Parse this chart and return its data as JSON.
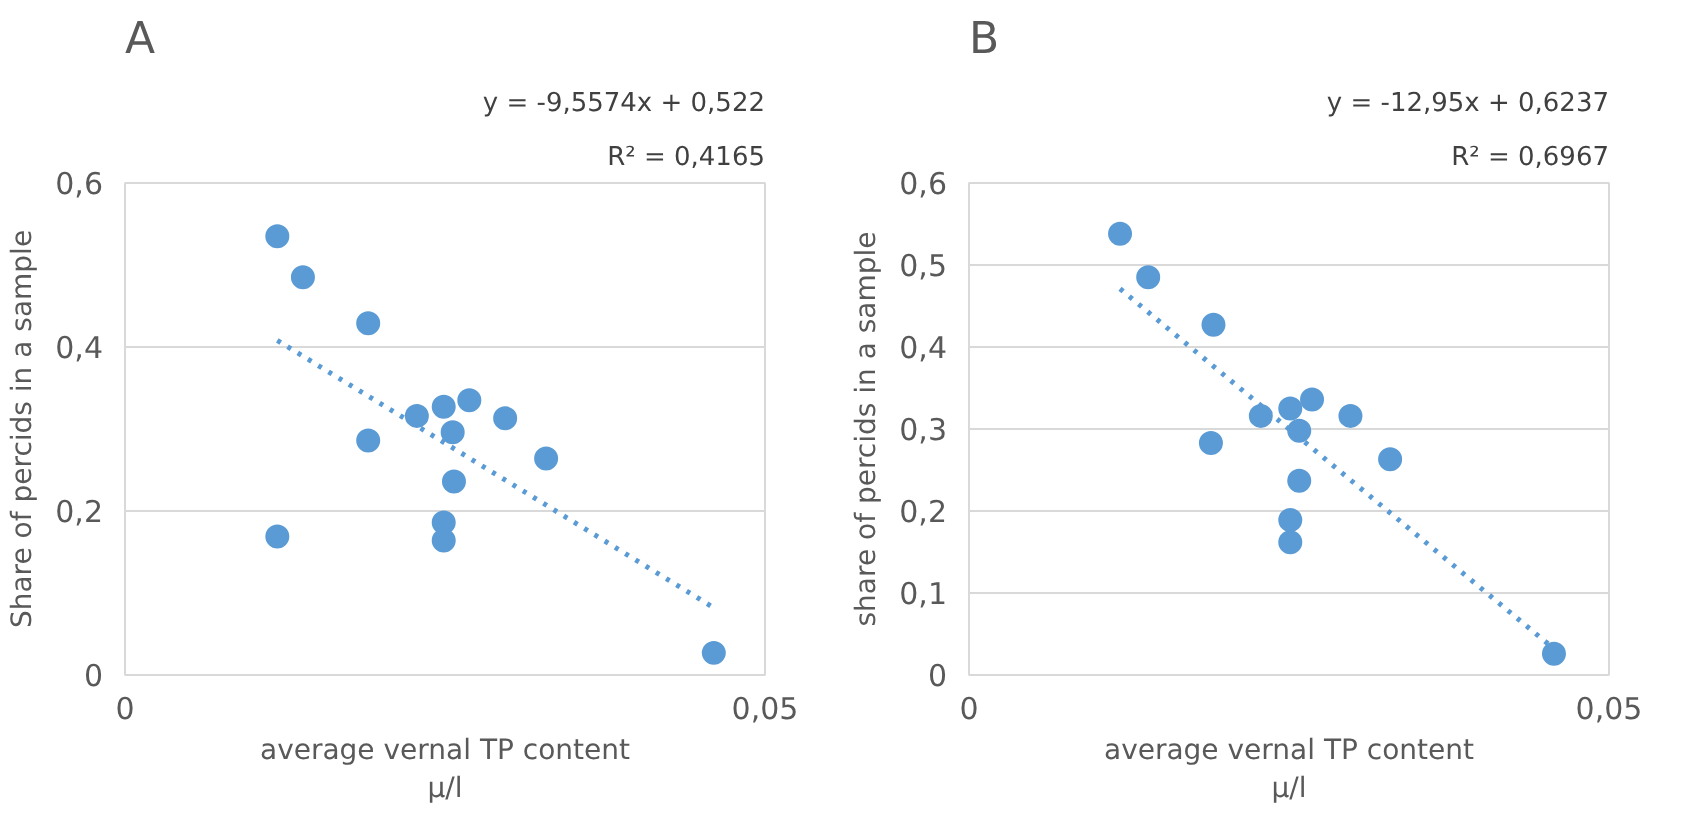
{
  "chart_data": [
    {
      "type": "scatter",
      "title": "A",
      "annotations": [
        "y = -9,5574x + 0,522",
        "R² = 0,4165"
      ],
      "xlabel": "average vernal TP content μ/l",
      "ylabel": "Share of percids in a sample",
      "xlim": [
        0,
        0.05
      ],
      "xticks": [
        0,
        {
          "value": 0.05,
          "label": "0,05"
        }
      ],
      "ylim": [
        0,
        0.6
      ],
      "yticks": [
        0,
        {
          "value": 0.2,
          "label": "0,2"
        },
        {
          "value": 0.4,
          "label": "0,4"
        },
        {
          "value": 0.6,
          "label": "0,6"
        }
      ],
      "grid": "y",
      "series": [
        {
          "type": "scatter",
          "marker": "circle",
          "color": "#5b9bd5",
          "x": [
            0.0119,
            0.0139,
            0.019,
            0.0228,
            0.0249,
            0.0269,
            0.0256,
            0.0297,
            0.0329,
            0.019,
            0.0257,
            0.0249,
            0.0249,
            0.0119,
            0.046
          ],
          "values": [
            0.535,
            0.485,
            0.429,
            0.316,
            0.327,
            0.335,
            0.296,
            0.313,
            0.264,
            0.286,
            0.236,
            0.186,
            0.164,
            0.169,
            0.027
          ]
        },
        {
          "type": "line",
          "marker": "none",
          "line_style": "dotted",
          "color": "#5b9bd5",
          "x": [
            0.0119,
            0.046
          ],
          "values": [
            0.408,
            0.082
          ]
        }
      ]
    },
    {
      "type": "scatter",
      "title": "B",
      "annotations": [
        "y = -12,95x + 0,6237",
        "R² = 0,6967"
      ],
      "xlabel": "average vernal TP content μ/l",
      "ylabel": "share of percids in a sample",
      "xlim": [
        0,
        0.05
      ],
      "xticks": [
        0,
        {
          "value": 0.05,
          "label": "0,05"
        }
      ],
      "ylim": [
        0,
        0.6
      ],
      "yticks": [
        0,
        {
          "value": 0.1,
          "label": "0,1"
        },
        {
          "value": 0.2,
          "label": "0,2"
        },
        {
          "value": 0.3,
          "label": "0,3"
        },
        {
          "value": 0.4,
          "label": "0,4"
        },
        {
          "value": 0.5,
          "label": "0,5"
        },
        {
          "value": 0.6,
          "label": "0,6"
        }
      ],
      "grid": "y",
      "series": [
        {
          "type": "scatter",
          "marker": "circle",
          "color": "#5b9bd5",
          "x": [
            0.0118,
            0.014,
            0.0191,
            0.0189,
            0.0228,
            0.0251,
            0.0268,
            0.0258,
            0.0298,
            0.0329,
            0.0258,
            0.0251,
            0.0251,
            0.0457
          ],
          "values": [
            0.538,
            0.485,
            0.427,
            0.283,
            0.316,
            0.325,
            0.336,
            0.298,
            0.316,
            0.263,
            0.237,
            0.189,
            0.162,
            0.026
          ]
        },
        {
          "type": "line",
          "marker": "none",
          "line_style": "dotted",
          "color": "#5b9bd5",
          "x": [
            0.0118,
            0.0457
          ],
          "values": [
            0.471,
            0.032
          ]
        }
      ]
    }
  ]
}
